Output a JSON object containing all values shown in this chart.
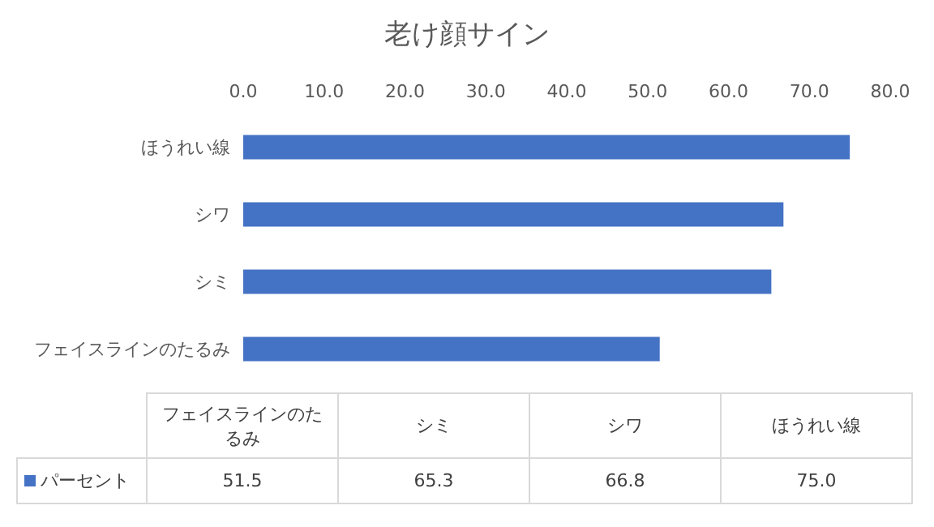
{
  "chart_data": {
    "type": "bar",
    "orientation": "horizontal",
    "title": "老け顔サイン",
    "categories": [
      "ほうれい線",
      "シワ",
      "シミ",
      "フェイスラインのたるみ"
    ],
    "series": [
      {
        "name": "パーセント",
        "color": "#4472c4",
        "values": [
          75.0,
          66.8,
          65.3,
          51.5
        ]
      }
    ],
    "xlim": [
      0,
      80
    ],
    "xticks": [
      {
        "value": 0,
        "label": "0.0"
      },
      {
        "value": 10,
        "label": "10.0"
      },
      {
        "value": 20,
        "label": "20.0"
      },
      {
        "value": 30,
        "label": "30.0"
      },
      {
        "value": 40,
        "label": "40.0"
      },
      {
        "value": 50,
        "label": "50.0"
      },
      {
        "value": 60,
        "label": "60.0"
      },
      {
        "value": 70,
        "label": "70.0"
      },
      {
        "value": 80,
        "label": "80.0"
      }
    ],
    "value_labels": [
      "75.0",
      "66.8",
      "65.3",
      "51.5"
    ],
    "legend": "bottom",
    "grid": false
  }
}
